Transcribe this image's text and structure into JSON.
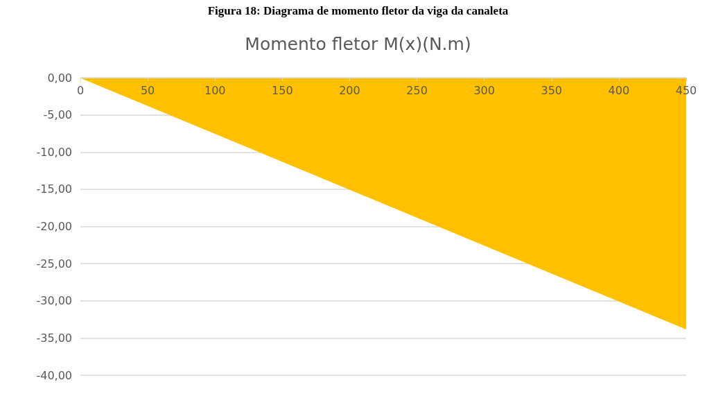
{
  "chart_data": {
    "type": "area",
    "title": "Figura 18: Diagrama de momento fletor da viga da canaleta",
    "subtitle": "Momento fletor M(x)(N.m)",
    "x": [
      0,
      450
    ],
    "series": [
      {
        "color": "#ffc000",
        "values": [
          0,
          -33.8
        ]
      }
    ],
    "xlim": [
      0,
      450
    ],
    "xticks": [
      0,
      50,
      100,
      150,
      200,
      250,
      300,
      350,
      400,
      450
    ],
    "ylim": [
      -40,
      0
    ],
    "yticks": [
      {
        "value": -40,
        "label": "-40,00"
      },
      {
        "value": -35,
        "label": "-35,00"
      },
      {
        "value": -30,
        "label": "-30,00"
      },
      {
        "value": -25,
        "label": "-25,00"
      },
      {
        "value": -20,
        "label": "-20,00"
      },
      {
        "value": -15,
        "label": "-15,00"
      },
      {
        "value": -10,
        "label": "-10,00"
      },
      {
        "value": -5,
        "label": "-5,00"
      },
      {
        "value": 0,
        "label": "0,00"
      }
    ],
    "grid": "y",
    "marker": "none",
    "line_style": "solid"
  }
}
